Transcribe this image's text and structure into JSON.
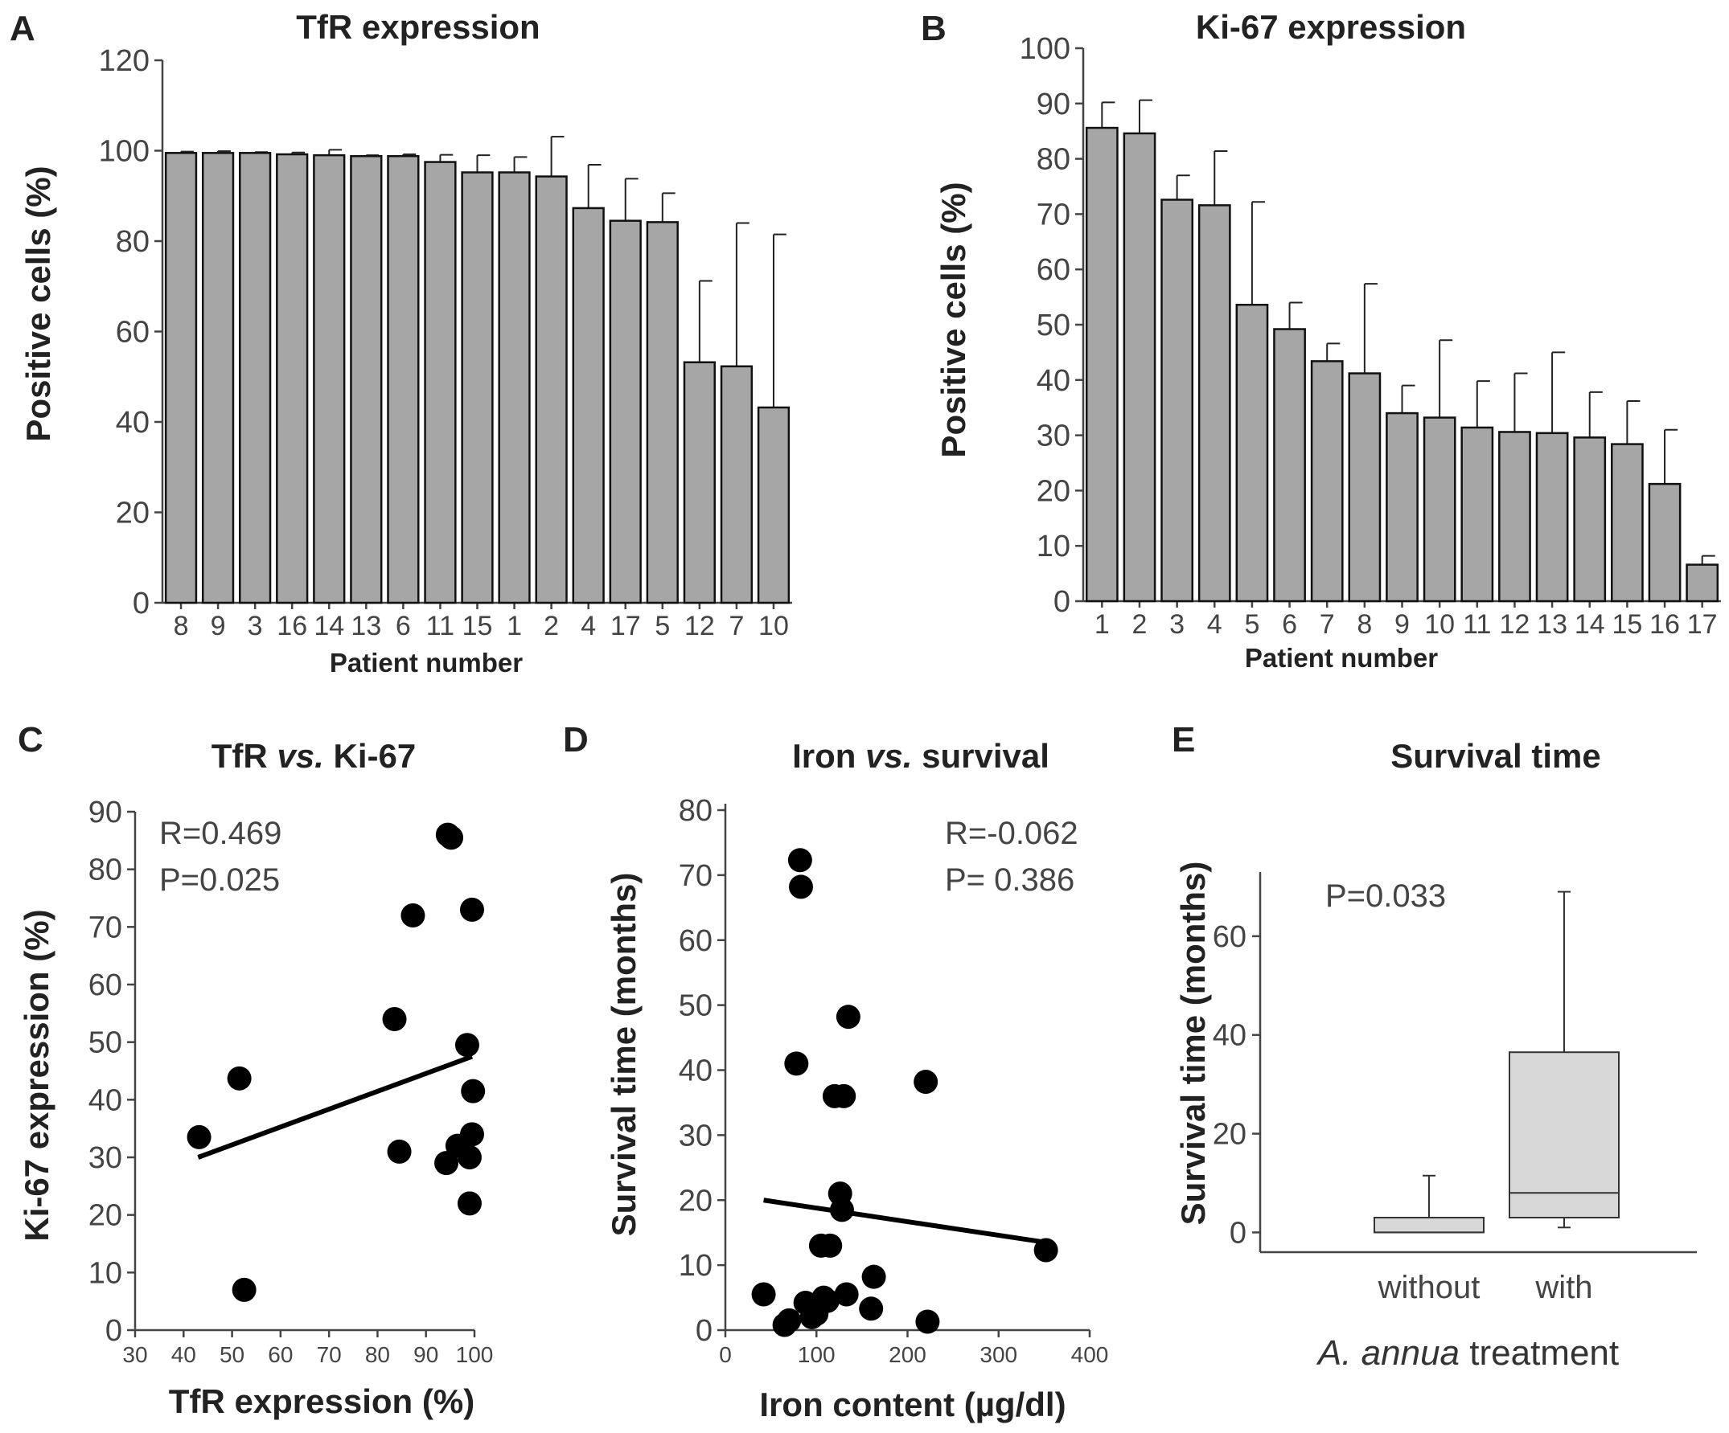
{
  "chart_data": [
    {
      "panel": "A",
      "type": "bar",
      "title": "TfR expression",
      "xlabel": "Patient number",
      "ylabel": "Positive cells (%)",
      "ylim": [
        0,
        120
      ],
      "yticks": [
        0,
        20,
        40,
        60,
        80,
        100,
        120
      ],
      "categories": [
        "8",
        "9",
        "3",
        "16",
        "14",
        "13",
        "6",
        "11",
        "15",
        "1",
        "2",
        "4",
        "17",
        "5",
        "12",
        "7",
        "10"
      ],
      "values": [
        99.5,
        99.5,
        99.5,
        99.2,
        99,
        98.8,
        98.8,
        97.5,
        95.2,
        95.2,
        94.3,
        87.3,
        84.5,
        84.2,
        53.2,
        52.3,
        43.2
      ],
      "error_upper": [
        0.3,
        0.4,
        0.2,
        0.4,
        1.2,
        0.2,
        0.4,
        1.6,
        3.8,
        3.4,
        8.8,
        9.6,
        9.3,
        6.4,
        18,
        31.7,
        38.3
      ]
    },
    {
      "panel": "B",
      "type": "bar",
      "title": "Ki-67 expression",
      "xlabel": "Patient number",
      "ylabel": "Positive cells (%)",
      "ylim": [
        0,
        100
      ],
      "yticks": [
        0,
        10,
        20,
        30,
        40,
        50,
        60,
        70,
        80,
        90,
        100
      ],
      "categories": [
        "1",
        "2",
        "3",
        "4",
        "5",
        "6",
        "7",
        "8",
        "9",
        "10",
        "11",
        "12",
        "13",
        "14",
        "15",
        "16",
        "17"
      ],
      "values": [
        85.6,
        84.6,
        72.6,
        71.6,
        53.6,
        49.2,
        43.4,
        41.2,
        34.0,
        33.2,
        31.4,
        30.6,
        30.4,
        29.6,
        28.4,
        21.2,
        6.6
      ],
      "error_upper": [
        4.6,
        6.0,
        4.4,
        9.8,
        18.6,
        4.8,
        3.2,
        16.2,
        5.0,
        14.0,
        8.4,
        10.6,
        14.6,
        8.2,
        7.8,
        9.8,
        1.6
      ]
    },
    {
      "panel": "C",
      "type": "scatter",
      "title_prefix": "TfR",
      "title_italic": "vs.",
      "title_suffix": "Ki-67",
      "xlabel": "TfR expression (%)",
      "ylabel": "Ki-67 expression (%)",
      "xlim": [
        30,
        100
      ],
      "ylim": [
        0,
        90
      ],
      "xticks": [
        30,
        40,
        50,
        60,
        70,
        80,
        90,
        100
      ],
      "yticks": [
        0,
        10,
        20,
        30,
        40,
        50,
        60,
        70,
        80,
        90
      ],
      "stat_r": "R=0.469",
      "stat_p": "P=0.025",
      "points": [
        [
          43.2,
          33.5
        ],
        [
          51.5,
          43.7
        ],
        [
          52.5,
          7.0
        ],
        [
          83.5,
          54.0
        ],
        [
          84.5,
          31.0
        ],
        [
          87.3,
          72.0
        ],
        [
          94.2,
          29.0
        ],
        [
          94.5,
          86.0
        ],
        [
          95.2,
          85.5
        ],
        [
          96.5,
          32.0
        ],
        [
          98.5,
          49.5
        ],
        [
          99.0,
          30.0
        ],
        [
          99.0,
          22.0
        ],
        [
          99.5,
          34.0
        ],
        [
          99.5,
          73.0
        ],
        [
          99.7,
          41.5
        ]
      ],
      "fit_line": [
        [
          43,
          30
        ],
        [
          99.5,
          47.5
        ]
      ]
    },
    {
      "panel": "D",
      "type": "scatter",
      "title_prefix": "Iron",
      "title_italic": "vs.",
      "title_suffix": "survival",
      "xlabel": "Iron content (µg/dl)",
      "ylabel": "Survival time (months)",
      "xlim": [
        0,
        400
      ],
      "ylim": [
        0,
        80
      ],
      "xticks": [
        0,
        100,
        200,
        300,
        400
      ],
      "yticks": [
        0,
        10,
        20,
        30,
        40,
        50,
        60,
        70,
        80
      ],
      "stat_r": "R=-0.062",
      "stat_p": "P=  0.386",
      "points": [
        [
          42,
          5.5
        ],
        [
          65,
          0.8
        ],
        [
          70,
          1.5
        ],
        [
          78,
          41
        ],
        [
          82,
          72.3
        ],
        [
          83,
          68.2
        ],
        [
          88,
          4.2
        ],
        [
          95,
          2.0
        ],
        [
          100,
          2.5
        ],
        [
          100,
          3.5
        ],
        [
          105,
          13
        ],
        [
          108,
          5.0
        ],
        [
          112,
          4.5
        ],
        [
          115,
          13
        ],
        [
          120,
          36
        ],
        [
          126,
          21
        ],
        [
          128,
          18.5
        ],
        [
          130,
          36
        ],
        [
          133,
          5.5
        ],
        [
          135,
          48.2
        ],
        [
          163,
          8.2
        ],
        [
          160,
          3.3
        ],
        [
          220,
          38.2
        ],
        [
          222,
          1.3
        ],
        [
          352,
          12.3
        ]
      ],
      "fit_line": [
        [
          42,
          20
        ],
        [
          352,
          13.5
        ]
      ]
    },
    {
      "panel": "E",
      "type": "box",
      "title": "Survival time",
      "xlabel_italic": "A. annua",
      "xlabel_rest": " treatment",
      "ylabel": "Survival time (months)",
      "ylim": [
        -4,
        73
      ],
      "yticks": [
        0,
        20,
        40,
        60
      ],
      "stat_p": "P=0.033",
      "groups": [
        {
          "label": "without",
          "min": 0,
          "q1": 0,
          "median": 0,
          "q3": 3,
          "max": 11.5
        },
        {
          "label": "with",
          "min": 1,
          "q1": 3,
          "median": 8,
          "q3": 36.5,
          "max": 69
        }
      ]
    }
  ]
}
